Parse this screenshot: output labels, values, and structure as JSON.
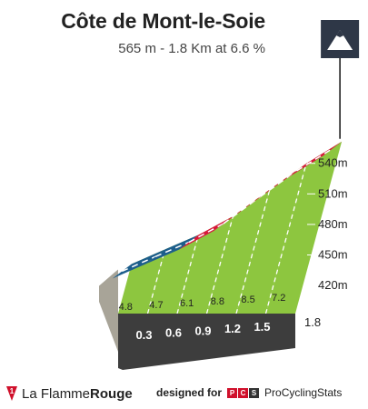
{
  "header": {
    "title": "Côte de Mont-le-Soie",
    "subtitle": "565 m - 1.8 Km at 6.6 %"
  },
  "chart_data": {
    "type": "area",
    "title": "Côte de Mont-le-Soie",
    "subtitle": "565 m - 1.8 Km at 6.6 %",
    "x_unit": "km",
    "y_unit": "m",
    "km_markers": [
      "0.3",
      "0.6",
      "0.9",
      "1.2",
      "1.5"
    ],
    "end_label": "1.8",
    "segment_gradients": [
      "4.8",
      "4.7",
      "6.1",
      "8.8",
      "8.5",
      "7.2"
    ],
    "altitude_ticks": [
      "420m",
      "450m",
      "480m",
      "510m",
      "540m"
    ],
    "segments": [
      {
        "from_km": 0.0,
        "to_km": 0.3,
        "gradient": 4.8
      },
      {
        "from_km": 0.3,
        "to_km": 0.6,
        "gradient": 4.7
      },
      {
        "from_km": 0.6,
        "to_km": 0.9,
        "gradient": 6.1
      },
      {
        "from_km": 0.9,
        "to_km": 1.2,
        "gradient": 8.8
      },
      {
        "from_km": 1.2,
        "to_km": 1.5,
        "gradient": 8.5
      },
      {
        "from_km": 1.5,
        "to_km": 1.8,
        "gradient": 7.2
      }
    ],
    "ylim": [
      396,
      565
    ],
    "colors": {
      "fill": "#8dc63f",
      "road_easy": "#1d5e8c",
      "road_steep": "#d7193c",
      "base": "#3d3d3d",
      "side": "#a8a498"
    },
    "summit_icon": "mountain-icon"
  },
  "footer": {
    "brand_left": "La Flamme",
    "brand_right": "Rouge",
    "designed_for": "designed for",
    "pcs_letters": [
      "P",
      "C",
      "S"
    ],
    "pcs_name": "ProCyclingStats"
  }
}
